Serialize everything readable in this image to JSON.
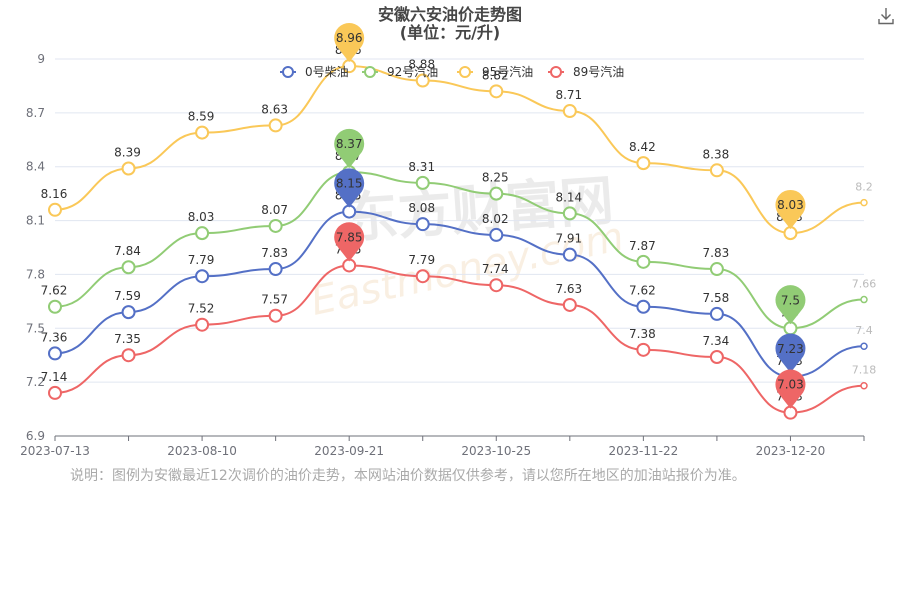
{
  "chart_data": {
    "type": "line",
    "title": "安徽六安油价走势图",
    "subtitle": "(单位：元/升)",
    "x": [
      "2023-07-13",
      "",
      "2023-08-10",
      "",
      "2023-09-21",
      "",
      "2023-10-25",
      "",
      "2023-11-22",
      "",
      "2023-12-20",
      ""
    ],
    "x_ticks": [
      "2023-07-13",
      "2023-08-10",
      "2023-09-21",
      "2023-10-25",
      "2023-11-22",
      "2023-12-20"
    ],
    "ylim": [
      6.9,
      9.0
    ],
    "y_ticks": [
      "6.9",
      "7.2",
      "7.5",
      "7.8",
      "8.1",
      "8.4",
      "8.7",
      "9"
    ],
    "grid": true,
    "legend_position": "top",
    "series": [
      {
        "name": "0号柴油",
        "color": "#5470c6",
        "values": [
          7.36,
          7.59,
          7.79,
          7.83,
          8.15,
          8.08,
          8.02,
          7.91,
          7.62,
          7.58,
          7.23,
          7.4
        ],
        "labels": [
          "7.36",
          "7.59",
          "7.79",
          "7.83",
          "8.15",
          "8.08",
          "8.02",
          "7.91",
          "7.62",
          "7.58",
          "7.23",
          "7.4"
        ]
      },
      {
        "name": "92号汽油",
        "color": "#91cc75",
        "values": [
          7.62,
          7.84,
          8.03,
          8.07,
          8.37,
          8.31,
          8.25,
          8.14,
          7.87,
          7.83,
          7.5,
          7.66
        ],
        "labels": [
          "7.62",
          "7.84",
          "8.03",
          "8.07",
          "8.37",
          "8.31",
          "8.25",
          "8.14",
          "7.87",
          "7.83",
          "7.5",
          "7.66"
        ]
      },
      {
        "name": "95号汽油",
        "color": "#fac858",
        "values": [
          8.16,
          8.39,
          8.59,
          8.63,
          8.96,
          8.88,
          8.82,
          8.71,
          8.42,
          8.38,
          8.03,
          8.2
        ],
        "labels": [
          "8.16",
          "8.39",
          "8.59",
          "8.63",
          "8.96",
          "8.88",
          "8.82",
          "8.71",
          "8.42",
          "8.38",
          "8.03",
          "8.2"
        ]
      },
      {
        "name": "89号汽油",
        "color": "#ee6666",
        "values": [
          7.14,
          7.35,
          7.52,
          7.57,
          7.85,
          7.79,
          7.74,
          7.63,
          7.38,
          7.34,
          7.03,
          7.18
        ],
        "labels": [
          "7.14",
          "7.35",
          "7.52",
          "7.57",
          "7.85",
          "7.79",
          "7.74",
          "7.63",
          "7.38",
          "7.34",
          "7.03",
          "7.18"
        ]
      }
    ],
    "pins": [
      {
        "series": "95号汽油",
        "index": 4,
        "label": "8.96"
      },
      {
        "series": "92号汽油",
        "index": 4,
        "label": "8.37"
      },
      {
        "series": "0号柴油",
        "index": 4,
        "label": "8.15"
      },
      {
        "series": "89号汽油",
        "index": 4,
        "label": "7.85"
      },
      {
        "series": "95号汽油",
        "index": 10,
        "label": "8.03"
      },
      {
        "series": "92号汽油",
        "index": 10,
        "label": "7.5"
      },
      {
        "series": "0号柴油",
        "index": 10,
        "label": "7.23"
      },
      {
        "series": "89号汽油",
        "index": 10,
        "label": "7.03"
      }
    ]
  },
  "footnote": "说明：图例为安徽最近12次调价的油价走势，本网站油价数据仅供参考，请以您所在地区的加油站报价为准。",
  "watermark": {
    "cn": "东方财富网",
    "en": "Eastmoney.com"
  },
  "download_icon": "download-icon"
}
